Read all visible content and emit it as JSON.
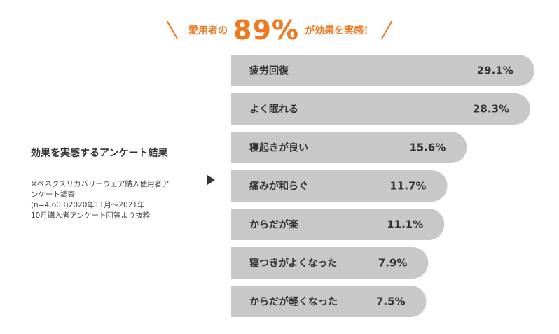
{
  "headline": {
    "prefix": "愛用者の",
    "percent": "89%",
    "suffix": "が効果を実感！",
    "accent_color": "#f07820"
  },
  "survey": {
    "title": "効果を実感するアンケート結果",
    "note_lines": [
      "※ベネクスリカバリーウェア購入使用者ア",
      "ンケート調査",
      "(n=4,603)2020年11月～2021年",
      "10月購入者アンケート回答より抜粋"
    ]
  },
  "arrow_icon": "triangle-right-icon",
  "chart_data": {
    "type": "bar",
    "orientation": "horizontal",
    "bar_color": "#c8c8c8",
    "categories": [
      "疲労回復",
      "よく眠れる",
      "寝起きが良い",
      "痛みが和らぐ",
      "からだが楽",
      "寝つきがよくなった",
      "からだが軽くなった"
    ],
    "values": [
      29.1,
      28.3,
      15.6,
      11.7,
      11.1,
      7.9,
      7.5
    ],
    "value_labels": [
      "29.1%",
      "28.3%",
      "15.6%",
      "11.7%",
      "11.1%",
      "7.9%",
      "7.5%"
    ],
    "title": "",
    "xlabel": "",
    "ylabel": "",
    "grid": false,
    "legend": false
  }
}
